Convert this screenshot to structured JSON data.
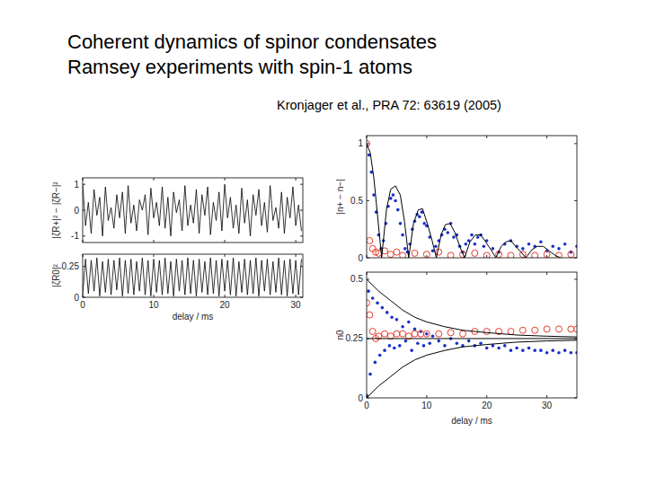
{
  "slide": {
    "title": [
      "Coherent dynamics of spinor condensates",
      "Ramsey experiments with spin-1 atoms"
    ],
    "citation": "Kronjager et al.,  PRA 72: 63619 (2005)"
  },
  "chart_data": [
    {
      "type": "line",
      "y_label": "|ζR+|² − |ζR−|²",
      "tick_labels": "y",
      "xlim": [
        0,
        31
      ],
      "ylim": [
        -1.25,
        1.25
      ],
      "xticks": [
        0,
        10,
        20,
        30
      ],
      "yticks": [
        -1,
        0,
        1
      ],
      "x": [
        0,
        0.4,
        0.8,
        1.2,
        1.6,
        2,
        2.4,
        2.8,
        3.2,
        3.6,
        4,
        4.4,
        4.8,
        5.2,
        5.6,
        6,
        6.4,
        6.8,
        7.2,
        7.6,
        8,
        8.4,
        8.8,
        9.2,
        9.6,
        10,
        10.4,
        10.8,
        11.2,
        11.6,
        12,
        12.4,
        12.8,
        13.2,
        13.6,
        14,
        14.4,
        14.8,
        15.2,
        15.6,
        16,
        16.4,
        16.8,
        17.2,
        17.6,
        18,
        18.4,
        18.8,
        19.2,
        19.6,
        20,
        20.4,
        20.8,
        21.2,
        21.6,
        22,
        22.4,
        22.8,
        23.2,
        23.6,
        24,
        24.4,
        24.8,
        25.2,
        25.6,
        26,
        26.4,
        26.8,
        27.2,
        27.6,
        28,
        28.4,
        28.8,
        29.2,
        29.6,
        30,
        30.4,
        30.8
      ],
      "series": [
        {
          "color": "#000000",
          "values": [
            1.0,
            -0.6,
            0.3,
            -0.9,
            0.8,
            -0.2,
            0.5,
            -1.0,
            0.9,
            -0.4,
            0.1,
            -0.7,
            0.6,
            -0.3,
            0.7,
            -0.9,
            0.95,
            -0.5,
            0.2,
            -0.8,
            0.4,
            0.0,
            0.6,
            -0.95,
            0.85,
            -0.3,
            0.3,
            -0.6,
            0.9,
            -0.7,
            0.5,
            -1.0,
            0.7,
            -0.1,
            0.4,
            -0.8,
            0.95,
            -0.6,
            0.2,
            -0.5,
            0.8,
            -0.9,
            0.6,
            -0.2,
            0.9,
            -0.95,
            0.3,
            -0.4,
            0.7,
            -0.8,
            1.0,
            -0.3,
            0.5,
            -0.7,
            0.2,
            -0.9,
            0.85,
            -0.5,
            0.4,
            -1.0,
            0.6,
            -0.2,
            0.8,
            -0.6,
            0.3,
            -0.85,
            0.95,
            -0.4,
            0.1,
            -0.7,
            0.7,
            -0.9,
            0.5,
            -0.3,
            0.9,
            -0.6,
            0.2,
            -0.8
          ]
        }
      ]
    },
    {
      "type": "line",
      "y_label": "|ζR0|²",
      "x_label": "delay / ms",
      "xlim": [
        0,
        31
      ],
      "ylim": [
        0,
        0.35
      ],
      "xticks": [
        0,
        10,
        20,
        30
      ],
      "yticks": [
        0,
        0.25
      ],
      "x": [
        0,
        0.4,
        0.8,
        1.2,
        1.6,
        2,
        2.4,
        2.8,
        3.2,
        3.6,
        4,
        4.4,
        4.8,
        5.2,
        5.6,
        6,
        6.4,
        6.8,
        7.2,
        7.6,
        8,
        8.4,
        8.8,
        9.2,
        9.6,
        10,
        10.4,
        10.8,
        11.2,
        11.6,
        12,
        12.4,
        12.8,
        13.2,
        13.6,
        14,
        14.4,
        14.8,
        15.2,
        15.6,
        16,
        16.4,
        16.8,
        17.2,
        17.6,
        18,
        18.4,
        18.8,
        19.2,
        19.6,
        20,
        20.4,
        20.8,
        21.2,
        21.6,
        22,
        22.4,
        22.8,
        23.2,
        23.6,
        24,
        24.4,
        24.8,
        25.2,
        25.6,
        26,
        26.4,
        26.8,
        27.2,
        27.6,
        28,
        28.4,
        28.8,
        29.2,
        29.6,
        30,
        30.4,
        30.8
      ],
      "series": [
        {
          "color": "#000000",
          "values": [
            0.02,
            0.31,
            0.03,
            0.3,
            0.05,
            0.32,
            0.01,
            0.29,
            0.04,
            0.31,
            0.02,
            0.3,
            0.06,
            0.32,
            0.01,
            0.3,
            0.03,
            0.31,
            0.02,
            0.29,
            0.05,
            0.32,
            0.02,
            0.3,
            0.01,
            0.31,
            0.04,
            0.3,
            0.02,
            0.32,
            0.03,
            0.29,
            0.01,
            0.31,
            0.05,
            0.3,
            0.02,
            0.32,
            0.03,
            0.3,
            0.01,
            0.31,
            0.04,
            0.29,
            0.02,
            0.32,
            0.03,
            0.3,
            0.01,
            0.31,
            0.05,
            0.3,
            0.02,
            0.32,
            0.01,
            0.29,
            0.04,
            0.31,
            0.02,
            0.3,
            0.03,
            0.32,
            0.01,
            0.3,
            0.05,
            0.31,
            0.02,
            0.29,
            0.04,
            0.32,
            0.02,
            0.3,
            0.01,
            0.31,
            0.03,
            0.3,
            0.02,
            0.31
          ]
        }
      ]
    },
    {
      "type": "scatter",
      "y_label": "|n+ − n−|",
      "tick_labels": "y",
      "xlim": [
        0,
        35
      ],
      "ylim": [
        0,
        1.07
      ],
      "xticks": [
        0,
        10,
        20,
        30
      ],
      "yticks": [
        0,
        0.5,
        1
      ],
      "series": [
        {
          "type": "scatter",
          "marker": "dot",
          "color": "#1a2fcc",
          "x": [
            0,
            0.4,
            0.8,
            1.2,
            1.6,
            2,
            2.4,
            2.8,
            3.2,
            3.6,
            4,
            4.4,
            4.8,
            5.2,
            5.6,
            6,
            6.4,
            6.8,
            7.2,
            7.6,
            8,
            8.4,
            8.8,
            9.2,
            9.6,
            10,
            10.5,
            11,
            11.5,
            12,
            12.5,
            13,
            13.5,
            14,
            14.5,
            15,
            15.5,
            16,
            16.5,
            17,
            17.5,
            18,
            18.5,
            19,
            19.5,
            20,
            21,
            22,
            23,
            24,
            25,
            26,
            27,
            28,
            29,
            30,
            31,
            32,
            33,
            34,
            35
          ],
          "values": [
            0.98,
            0.9,
            0.75,
            0.55,
            0.4,
            0.2,
            0.08,
            0.15,
            0.3,
            0.45,
            0.52,
            0.55,
            0.5,
            0.42,
            0.3,
            0.2,
            0.08,
            0.05,
            0.12,
            0.25,
            0.32,
            0.38,
            0.36,
            0.4,
            0.3,
            0.28,
            0.18,
            0.06,
            0.1,
            0.15,
            0.2,
            0.25,
            0.22,
            0.3,
            0.18,
            0.2,
            0.1,
            0.05,
            0.12,
            0.15,
            0.2,
            0.12,
            0.18,
            0.2,
            0.1,
            0.15,
            0.08,
            0.05,
            0.12,
            0.15,
            0.1,
            0.08,
            0.12,
            0.1,
            0.14,
            0.06,
            0.1,
            0.08,
            0.12,
            0.05,
            0.1
          ]
        },
        {
          "type": "scatter",
          "marker": "circle",
          "color": "#e83a2a",
          "x": [
            0,
            0.5,
            1,
            1.5,
            2,
            3,
            4,
            5,
            6,
            8,
            10,
            12,
            14,
            16,
            18,
            20,
            22,
            24,
            26,
            28,
            30,
            32,
            34
          ],
          "values": [
            1,
            0.15,
            0.08,
            0.05,
            0.04,
            0.06,
            0.03,
            0.05,
            0.02,
            0.04,
            0.03,
            0.05,
            0.02,
            0.03,
            0.04,
            0.02,
            0.03,
            0.02,
            0.03,
            0.02,
            0.03,
            0.02,
            0.03
          ]
        },
        {
          "type": "line",
          "color": "#000000",
          "x": [
            0,
            0.6,
            1.2,
            1.8,
            2.5,
            3.3,
            4.0,
            4.8,
            5.6,
            6.3,
            7.0,
            7.8,
            8.6,
            9.3,
            10.1,
            10.9,
            11.6,
            12.4,
            13.1,
            13.9,
            14.7,
            15.5,
            16.3,
            17.2,
            18.1,
            19.0,
            19.8,
            20.7,
            21.5,
            22.4,
            23.2,
            24.0,
            24.8,
            25.7,
            26.5,
            27.5,
            28.4,
            29.4,
            30.4,
            31.4,
            32.3
          ],
          "values": [
            1,
            0.92,
            0.7,
            0.38,
            0,
            0.42,
            0.6,
            0.63,
            0.55,
            0.32,
            0,
            0.3,
            0.42,
            0.43,
            0.3,
            0.15,
            0,
            0.2,
            0.29,
            0.3,
            0.22,
            0.1,
            0,
            0.14,
            0.2,
            0.2,
            0.14,
            0.07,
            0,
            0.1,
            0.14,
            0.15,
            0.1,
            0.05,
            0,
            0.07,
            0.1,
            0.1,
            0.06,
            0.02,
            0
          ]
        }
      ]
    },
    {
      "type": "scatter",
      "y_label": "n0",
      "x_label": "delay / ms",
      "xlim": [
        0,
        35
      ],
      "ylim": [
        0,
        0.53
      ],
      "xticks": [
        0,
        10,
        20,
        30
      ],
      "yticks": [
        0,
        0.25,
        0.5
      ],
      "series": [
        {
          "type": "scatter",
          "marker": "dot",
          "color": "#1a2fcc",
          "x": [
            0,
            0.3,
            0.6,
            1,
            1.4,
            1.8,
            2.2,
            2.6,
            3,
            3.4,
            3.8,
            4.2,
            4.6,
            5,
            5.5,
            6,
            6.5,
            7,
            7.5,
            8,
            8.5,
            9,
            9.5,
            10,
            10.5,
            11,
            12,
            13,
            14,
            15,
            16,
            17,
            18,
            19,
            20,
            21,
            22,
            23,
            24,
            25,
            26,
            27,
            28,
            29,
            30,
            31,
            32,
            33,
            34,
            35
          ],
          "values": [
            0.01,
            0.45,
            0.1,
            0.42,
            0.15,
            0.4,
            0.18,
            0.38,
            0.2,
            0.36,
            0.22,
            0.34,
            0.21,
            0.33,
            0.22,
            0.3,
            0.24,
            0.32,
            0.2,
            0.29,
            0.23,
            0.28,
            0.22,
            0.27,
            0.23,
            0.26,
            0.24,
            0.22,
            0.25,
            0.23,
            0.22,
            0.24,
            0.22,
            0.23,
            0.21,
            0.22,
            0.21,
            0.22,
            0.2,
            0.21,
            0.2,
            0.21,
            0.2,
            0.2,
            0.19,
            0.2,
            0.19,
            0.2,
            0.19,
            0.19
          ]
        },
        {
          "type": "scatter",
          "marker": "circle",
          "color": "#e83a2a",
          "x": [
            0,
            0.5,
            1,
            1.5,
            2,
            3,
            4,
            5,
            6,
            7,
            8,
            9,
            10,
            12,
            14,
            16,
            18,
            20,
            22,
            24,
            26,
            28,
            30,
            32,
            34,
            35
          ],
          "values": [
            0.4,
            0.35,
            0.28,
            0.25,
            0.26,
            0.27,
            0.26,
            0.27,
            0.27,
            0.26,
            0.27,
            0.27,
            0.27,
            0.27,
            0.275,
            0.27,
            0.28,
            0.28,
            0.28,
            0.28,
            0.285,
            0.285,
            0.29,
            0.29,
            0.29,
            0.29
          ]
        },
        {
          "type": "line",
          "color": "#000000",
          "x": [
            0,
            2,
            4,
            6,
            8,
            10,
            13,
            16,
            20,
            25,
            30,
            35
          ],
          "values": [
            0.5,
            0.45,
            0.41,
            0.37,
            0.34,
            0.32,
            0.3,
            0.285,
            0.275,
            0.265,
            0.26,
            0.257
          ]
        },
        {
          "type": "line",
          "color": "#000000",
          "x": [
            0,
            2,
            4,
            6,
            8,
            10,
            13,
            16,
            20,
            25,
            30,
            35
          ],
          "values": [
            0,
            0.05,
            0.09,
            0.13,
            0.16,
            0.18,
            0.2,
            0.215,
            0.225,
            0.235,
            0.24,
            0.243
          ]
        },
        {
          "type": "line",
          "color": "#000000",
          "x": [
            0,
            35
          ],
          "values": [
            0.25,
            0.25
          ]
        }
      ]
    }
  ]
}
